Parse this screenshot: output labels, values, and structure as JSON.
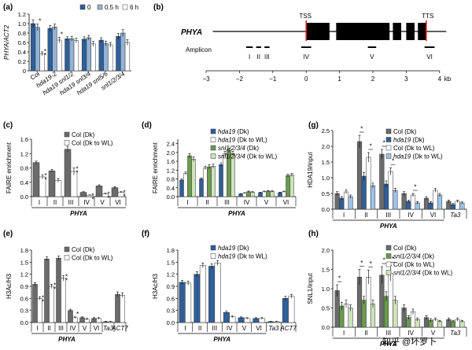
{
  "colors": {
    "dark_blue": "#2f5f99",
    "mid_blue": "#93b3d6",
    "white": "#ffffff",
    "dark_gray": "#6b6b6b",
    "light_gray": "#d2d2d2",
    "light_blue_diag": "#9fc3e6",
    "green": "#6a9b4e",
    "light_green": "#cfe3bc",
    "red": "#e02020"
  },
  "watermark": "知乎 @坏罗卜",
  "chart_data": [
    {
      "id": "a",
      "panel_label": "(a)",
      "type": "bar",
      "ylabel": "PHYA/ACT2",
      "ylim": [
        0,
        1.2
      ],
      "yticks": [
        "0",
        "0.2",
        "0.4",
        "0.6",
        "0.8",
        "1.0",
        "1.2"
      ],
      "categories": [
        "Col",
        "hda19-2",
        "hda19 snl1/2",
        "hda19 snl3/4",
        "hda19 snl5/6",
        "snl1/2/3/4"
      ],
      "series": [
        {
          "name": "0",
          "color": "#2f5f99",
          "values": [
            1.0,
            0.9,
            0.68,
            0.67,
            0.65,
            0.73
          ],
          "err": [
            0.08,
            0.06,
            0.04,
            0.05,
            0.05,
            0.06
          ]
        },
        {
          "name": "0.5 h",
          "color": "#93b3d6",
          "values": [
            0.92,
            0.93,
            0.68,
            0.7,
            0.58,
            0.8
          ],
          "err": [
            0.07,
            0.06,
            0.05,
            0.05,
            0.05,
            0.07
          ]
        },
        {
          "name": "6 h",
          "color": "#ffffff",
          "values": [
            0.36,
            0.65,
            0.64,
            0.57,
            0.55,
            0.6
          ],
          "err": [
            0.04,
            0.06,
            0.05,
            0.05,
            0.05,
            0.06
          ]
        }
      ],
      "stars": [
        {
          "cat": 0,
          "series": 1,
          "text": "*"
        },
        {
          "cat": 0,
          "series": 2,
          "text": "**"
        },
        {
          "cat": 1,
          "series": 2,
          "text": "*"
        }
      ]
    },
    {
      "id": "c",
      "panel_label": "(c)",
      "type": "bar",
      "ylabel": "FAIRE enrichment",
      "xlabel": "PHYA",
      "ylim": [
        0,
        1.6
      ],
      "yticks": [
        "0.0",
        "0.4",
        "0.8",
        "1.2",
        "1.6"
      ],
      "categories": [
        "I",
        "II",
        "III",
        "IV",
        "V",
        "VI"
      ],
      "series": [
        {
          "name": "Col (Dk)",
          "color": "#6b6b6b",
          "values": [
            0.95,
            0.72,
            1.32,
            0.12,
            0.3,
            0.25
          ],
          "err": [
            0.04,
            0.04,
            0.08,
            0.02,
            0.03,
            0.03
          ]
        },
        {
          "name": "Col (Dk to WL)",
          "color": "#ffffff",
          "values": [
            0.55,
            0.45,
            0.7,
            0.04,
            0.08,
            0.12
          ],
          "err": [
            0.06,
            0.05,
            0.1,
            0.01,
            0.02,
            0.02
          ]
        }
      ],
      "stars": [
        {
          "cat": 0,
          "series": 1,
          "text": "**"
        },
        {
          "cat": 2,
          "series": 1,
          "text": "**"
        },
        {
          "cat": 3,
          "series": 1,
          "text": "**"
        },
        {
          "cat": 4,
          "series": 1,
          "text": "**"
        },
        {
          "cat": 5,
          "series": 1,
          "text": "**"
        }
      ]
    },
    {
      "id": "d",
      "panel_label": "(d)",
      "type": "bar",
      "ylabel": "FAIRE enrichment",
      "xlabel": "PHYA",
      "ylim": [
        0,
        2.6
      ],
      "yticks": [
        "0.0",
        "0.4",
        "0.8",
        "1.2",
        "1.6",
        "2.0",
        "2.4"
      ],
      "categories": [
        "I",
        "II",
        "III",
        "IV",
        "V",
        "VI"
      ],
      "series": [
        {
          "name": "hda19 (Dk)",
          "color": "#2f5f99",
          "values": [
            0.75,
            0.8,
            1.45,
            0.12,
            0.18,
            0.18
          ],
          "err": [
            0.05,
            0.05,
            0.08,
            0.02,
            0.02,
            0.02
          ]
        },
        {
          "name": "hda19 (Dk to WL)",
          "color": "#ffffff",
          "values": [
            1.05,
            1.3,
            1.95,
            0.16,
            0.22,
            0.22
          ],
          "err": [
            0.07,
            0.08,
            0.1,
            0.02,
            0.03,
            0.03
          ]
        },
        {
          "name": "snl1/2/3/4 (Dk)",
          "color": "#6a9b4e",
          "values": [
            1.85,
            1.35,
            2.1,
            0.22,
            0.25,
            0.95
          ],
          "err": [
            0.1,
            0.1,
            0.1,
            0.03,
            0.03,
            0.07
          ]
        },
        {
          "name": "snl1/2/3/4 (Dk to WL)",
          "color": "#cfe3bc",
          "values": [
            1.7,
            1.38,
            1.95,
            0.2,
            0.24,
            0.98
          ],
          "err": [
            0.1,
            0.09,
            0.1,
            0.03,
            0.03,
            0.07
          ]
        }
      ],
      "stars": []
    },
    {
      "id": "e",
      "panel_label": "(e)",
      "type": "bar",
      "ylabel": "H3Ac/H3",
      "xlabel": "PHYA",
      "ylim": [
        0,
        1.8
      ],
      "yticks": [
        "0.0",
        "0.3",
        "0.6",
        "0.9",
        "1.2",
        "1.5",
        "1.8"
      ],
      "categories": [
        "I",
        "II",
        "III",
        "IV",
        "V",
        "VI",
        "Ta3",
        "ACT7"
      ],
      "series": [
        {
          "name": "Col (Dk)",
          "color": "#6b6b6b",
          "values": [
            0.95,
            1.58,
            1.6,
            0.3,
            0.12,
            0.1,
            0.02,
            0.7
          ],
          "err": [
            0.04,
            0.05,
            0.05,
            0.03,
            0.02,
            0.02,
            0.01,
            0.06
          ]
        },
        {
          "name": "Col (Dk to WL)",
          "color": "#ffffff",
          "values": [
            0.6,
            0.9,
            1.1,
            0.12,
            0.08,
            0.1,
            0.02,
            0.68
          ],
          "err": [
            0.04,
            0.05,
            0.06,
            0.02,
            0.02,
            0.02,
            0.01,
            0.06
          ]
        }
      ],
      "stars": [
        {
          "cat": 0,
          "series": 1,
          "text": "**"
        },
        {
          "cat": 1,
          "series": 1,
          "text": "**"
        },
        {
          "cat": 2,
          "series": 1,
          "text": "**"
        },
        {
          "cat": 3,
          "series": 1,
          "text": "*"
        }
      ]
    },
    {
      "id": "f",
      "panel_label": "(f)",
      "type": "bar",
      "ylabel": "H3Ac/H3",
      "xlabel": "PHYA",
      "ylim": [
        0,
        1.8
      ],
      "yticks": [
        "0.0",
        "0.3",
        "0.6",
        "0.9",
        "1.2",
        "1.5",
        "1.8"
      ],
      "categories": [
        "I",
        "II",
        "III",
        "IV",
        "V",
        "VI",
        "Ta3",
        "ACT7"
      ],
      "series": [
        {
          "name": "hda19 (Dk)",
          "color": "#2f5f99",
          "values": [
            1.0,
            1.2,
            1.4,
            0.25,
            0.12,
            0.1,
            0.02,
            0.6
          ],
          "err": [
            0.05,
            0.06,
            0.06,
            0.03,
            0.02,
            0.02,
            0.01,
            0.05
          ]
        },
        {
          "name": "hda19 (Dk to WL)",
          "color": "#ffffff",
          "values": [
            0.98,
            1.42,
            1.48,
            0.14,
            0.1,
            0.1,
            0.02,
            0.65
          ],
          "err": [
            0.05,
            0.06,
            0.06,
            0.02,
            0.02,
            0.02,
            0.01,
            0.05
          ]
        }
      ],
      "stars": []
    },
    {
      "id": "g",
      "panel_label": "(g)",
      "type": "bar",
      "ylabel": "HDA19/input",
      "xlabel": "PHYA",
      "ylim": [
        0,
        2.5
      ],
      "yticks": [
        "0.0",
        "0.5",
        "1.0",
        "1.5",
        "2.0",
        "2.5"
      ],
      "categories": [
        "I",
        "II",
        "III",
        "IV",
        "VI",
        "Ta3"
      ],
      "series": [
        {
          "name": "Col (Dk)",
          "color": "#6b6b6b",
          "values": [
            0.5,
            2.15,
            1.75,
            0.5,
            0.35,
            0.25
          ],
          "err": [
            0.06,
            0.2,
            0.15,
            0.06,
            0.05,
            0.04
          ]
        },
        {
          "name": "hda19 (Dk)",
          "color": "#2f5f99",
          "values": [
            0.35,
            1.05,
            0.8,
            0.25,
            0.2,
            0.15
          ],
          "err": [
            0.05,
            0.12,
            0.1,
            0.04,
            0.04,
            0.03
          ]
        },
        {
          "name": "Col (Dk to WL)",
          "color": "#ffffff",
          "values": [
            0.55,
            1.65,
            1.2,
            0.45,
            0.6,
            0.25
          ],
          "err": [
            0.06,
            0.15,
            0.12,
            0.05,
            0.06,
            0.04
          ]
        },
        {
          "name": "hda19 (Dk to WL)",
          "color": "#9fc3e6",
          "values": [
            0.4,
            0.75,
            0.6,
            0.2,
            0.45,
            0.2
          ],
          "err": [
            0.05,
            0.08,
            0.07,
            0.04,
            0.05,
            0.03
          ]
        }
      ],
      "brackets": [
        {
          "cat": 1,
          "from": 0,
          "to": 1
        },
        {
          "cat": 1,
          "from": 2,
          "to": 3
        },
        {
          "cat": 2,
          "from": 0,
          "to": 1
        },
        {
          "cat": 2,
          "from": 2,
          "to": 3
        },
        {
          "cat": 3,
          "from": 2,
          "to": 3
        }
      ],
      "bracket_text": "*",
      "stars": []
    },
    {
      "id": "h",
      "panel_label": "(h)",
      "type": "bar",
      "ylabel": "SNL1/input",
      "xlabel": "PHYA",
      "ylim": [
        0,
        2.0
      ],
      "yticks": [
        "0.0",
        "0.5",
        "1.0",
        "1.5",
        "2.0"
      ],
      "categories": [
        "I",
        "II",
        "III",
        "IV",
        "V",
        "Ta3"
      ],
      "series": [
        {
          "name": "Col (Dk)",
          "color": "#6b6b6b",
          "values": [
            0.95,
            1.3,
            1.35,
            0.5,
            0.25,
            0.2
          ],
          "err": [
            0.15,
            0.2,
            0.22,
            0.08,
            0.05,
            0.04
          ]
        },
        {
          "name": "snl1/2/3/4 (Dk)",
          "color": "#6a9b4e",
          "values": [
            0.55,
            0.7,
            0.8,
            0.25,
            0.18,
            0.15
          ],
          "err": [
            0.1,
            0.1,
            0.12,
            0.05,
            0.04,
            0.03
          ]
        },
        {
          "name": "Col (Dk to WL)",
          "color": "#ffffff",
          "values": [
            0.6,
            1.3,
            1.4,
            0.4,
            0.2,
            0.2
          ],
          "err": [
            0.1,
            0.18,
            0.2,
            0.07,
            0.04,
            0.04
          ]
        },
        {
          "name": "snl1/2/3/4 (Dk to WL)",
          "color": "#cfe3bc",
          "values": [
            0.5,
            0.6,
            0.7,
            0.2,
            0.15,
            0.15
          ],
          "err": [
            0.08,
            0.1,
            0.1,
            0.04,
            0.03,
            0.03
          ]
        }
      ],
      "brackets": [
        {
          "cat": 0,
          "from": 0,
          "to": 1
        },
        {
          "cat": 1,
          "from": 0,
          "to": 1
        },
        {
          "cat": 1,
          "from": 2,
          "to": 3
        },
        {
          "cat": 2,
          "from": 0,
          "to": 1
        },
        {
          "cat": 2,
          "from": 2,
          "to": 3
        }
      ],
      "bracket_text": "*",
      "stars": []
    }
  ],
  "gene_diagram": {
    "panel_label": "(b)",
    "gene_name": "PHYA",
    "tss_label": "TSS",
    "tts_label": "TTS",
    "amplicon_label": "Amplicon",
    "axis_unit": "kb",
    "axis_ticks": [
      -3,
      -2,
      -1,
      0,
      1,
      2,
      3,
      4
    ],
    "tick_labels": [
      "−3",
      "−2",
      "−1",
      "0",
      "1",
      "2",
      "3",
      "4"
    ],
    "tss_kb": 0.0,
    "tts_kb": 3.6,
    "exons_kb": [
      [
        0.0,
        0.7
      ],
      [
        0.9,
        2.5
      ],
      [
        2.6,
        2.85
      ],
      [
        3.0,
        3.25
      ],
      [
        3.35,
        3.6
      ]
    ],
    "amplicons": [
      {
        "label": "I",
        "start": -1.8,
        "end": -1.6
      },
      {
        "label": "II",
        "start": -1.5,
        "end": -1.35
      },
      {
        "label": "III",
        "start": -1.25,
        "end": -1.1
      },
      {
        "label": "IV",
        "start": -0.15,
        "end": 0.15
      },
      {
        "label": "V",
        "start": 1.85,
        "end": 2.1
      },
      {
        "label": "VI",
        "start": 3.55,
        "end": 3.85
      }
    ]
  }
}
